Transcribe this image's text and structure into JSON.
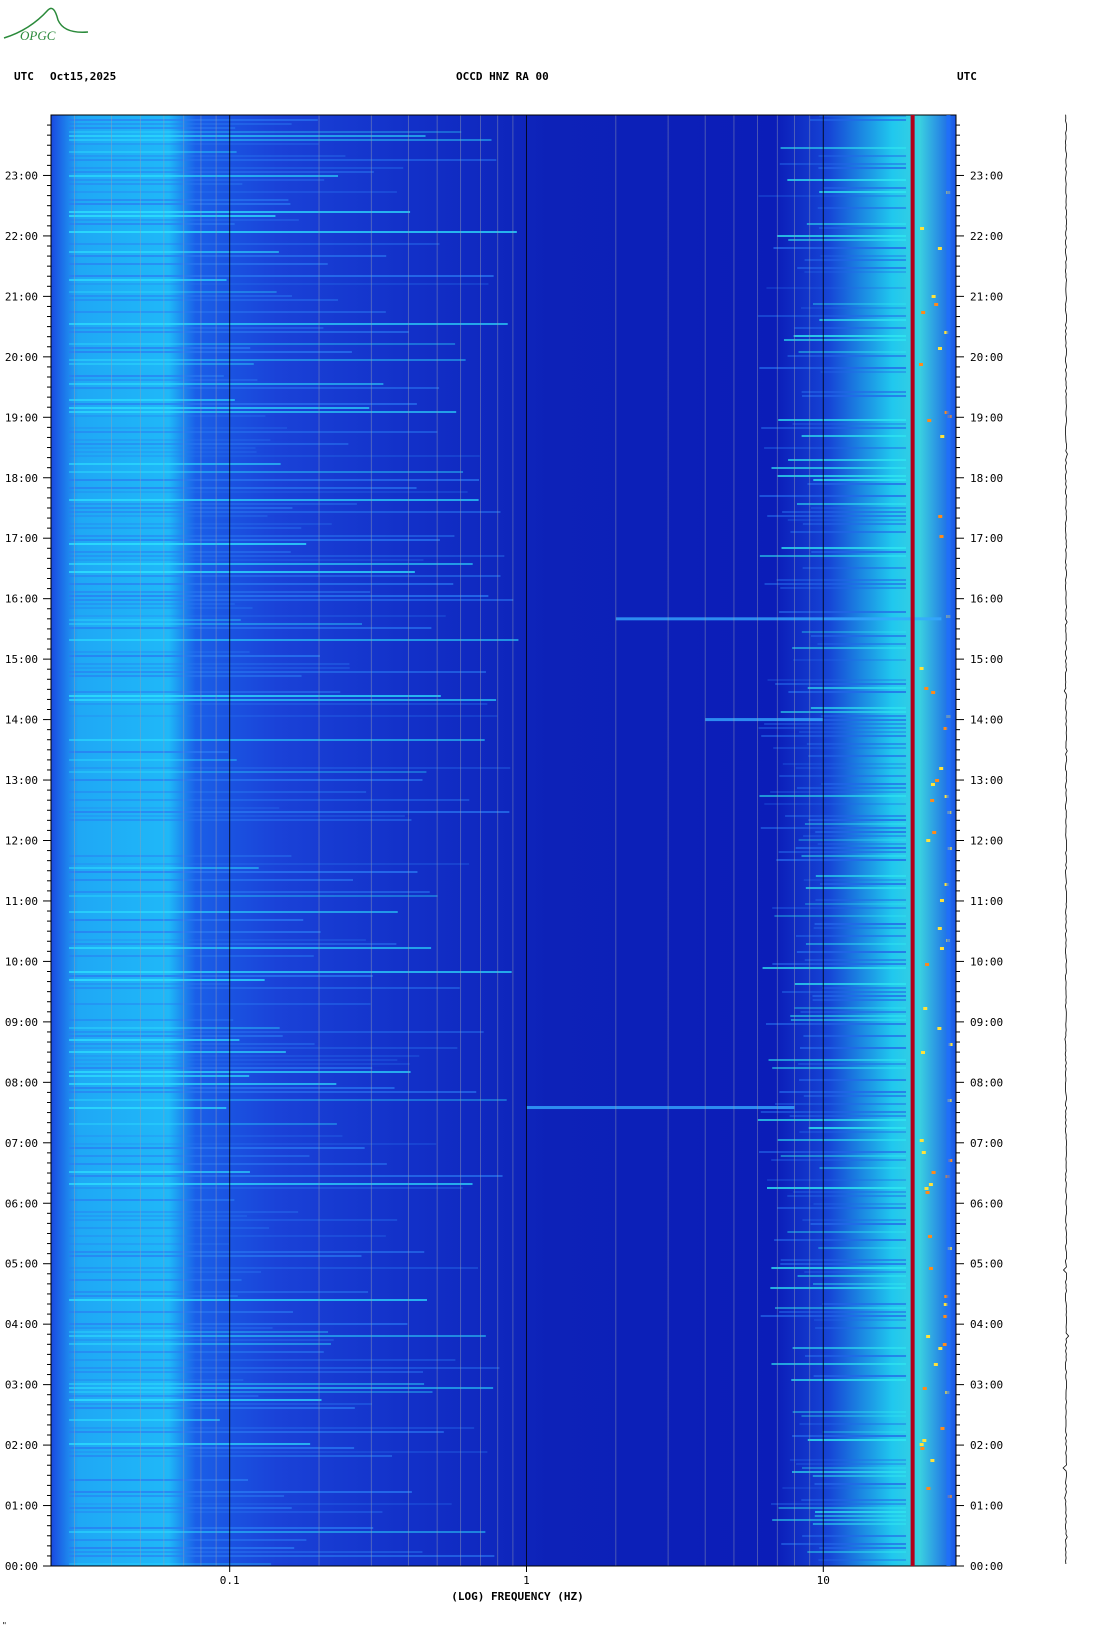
{
  "header": {
    "left_tz": "UTC",
    "date": "Oct15,2025",
    "station": "OCCD HNZ RA 00",
    "right_tz": "UTC"
  },
  "logo": {
    "text": "OPGC",
    "color": "#2a8a3a"
  },
  "xaxis": {
    "label": "(LOG) FREQUENCY (HZ)",
    "scale": "log",
    "range_hz": [
      0.025,
      28
    ],
    "tick_labels": [
      "0.1",
      "1",
      "10"
    ],
    "tick_values": [
      0.1,
      1,
      10
    ]
  },
  "yaxis": {
    "range_hours": [
      0,
      24
    ],
    "tick_labels": [
      "00:00",
      "01:00",
      "02:00",
      "03:00",
      "04:00",
      "05:00",
      "06:00",
      "07:00",
      "08:00",
      "09:00",
      "10:00",
      "11:00",
      "12:00",
      "13:00",
      "14:00",
      "15:00",
      "16:00",
      "17:00",
      "18:00",
      "19:00",
      "20:00",
      "21:00",
      "22:00",
      "23:00"
    ]
  },
  "corner_mark": "\"",
  "colors": {
    "background_low": "#0b1db8",
    "mid": "#1a5cf0",
    "high": "#18e0ff",
    "peak": "#ffe23a",
    "line": "#b3001b"
  },
  "chart_data": {
    "type": "heatmap",
    "title": "OCCD HNZ RA 00",
    "xlabel": "(LOG) FREQUENCY (HZ)",
    "ylabel": "",
    "x_scale": "log",
    "xlim": [
      0.025,
      28
    ],
    "ylim": [
      "00:00",
      "24:00"
    ],
    "grid": true,
    "strong_features": [
      {
        "frequency_hz": 20,
        "time": "00:00-24:00"
      },
      {
        "frequency_hz": 0.03,
        "time": "00:00-24:00"
      }
    ],
    "transient_events": [
      {
        "time": "07:35",
        "frequency_range_hz": [
          1,
          8
        ]
      },
      {
        "time": "14:00",
        "frequency_range_hz": [
          4,
          10
        ]
      },
      {
        "time": "15:40",
        "frequency_range_hz": [
          2,
          25
        ]
      }
    ]
  }
}
